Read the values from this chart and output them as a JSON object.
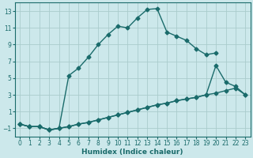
{
  "xlabel": "Humidex (Indice chaleur)",
  "background_color": "#cce8eb",
  "grid_color": "#aacccc",
  "line_color": "#1a6b6b",
  "xlim": [
    -0.5,
    23.5
  ],
  "ylim": [
    -2.0,
    14.0
  ],
  "yticks": [
    -1,
    1,
    3,
    5,
    7,
    9,
    11,
    13
  ],
  "xticks": [
    0,
    1,
    2,
    3,
    4,
    5,
    6,
    7,
    8,
    9,
    10,
    11,
    12,
    13,
    14,
    15,
    16,
    17,
    18,
    19,
    20,
    21,
    22,
    23
  ],
  "line1_x": [
    0,
    1,
    2,
    3,
    4,
    5,
    6,
    7,
    8,
    9,
    10,
    11,
    12,
    13,
    14,
    15,
    16,
    17,
    18,
    19,
    20,
    21,
    22,
    23
  ],
  "line1_y": [
    -0.5,
    -0.8,
    -0.8,
    -1.2,
    -1.0,
    5.3,
    6.2,
    7.5,
    9.0,
    10.2,
    11.2,
    11.0,
    12.2,
    13.2,
    13.3,
    10.5,
    10.0,
    9.5,
    8.5,
    7.8,
    8.0,
    null,
    null,
    null
  ],
  "line2_x": [
    0,
    1,
    2,
    3,
    4,
    5,
    6,
    7,
    8,
    9,
    10,
    11,
    12,
    13,
    14,
    15,
    16,
    17,
    18,
    19,
    20,
    21,
    22,
    23
  ],
  "line2_y": [
    -0.5,
    -0.8,
    -0.8,
    -1.2,
    -1.0,
    -0.8,
    -0.5,
    -0.3,
    0.0,
    0.3,
    0.6,
    0.9,
    1.2,
    1.5,
    1.8,
    2.0,
    2.3,
    2.5,
    2.7,
    3.0,
    3.2,
    3.5,
    3.8,
    3.0
  ],
  "line3_x": [
    0,
    1,
    2,
    3,
    4,
    5,
    6,
    7,
    8,
    9,
    10,
    11,
    12,
    13,
    14,
    15,
    16,
    17,
    18,
    19,
    20,
    21,
    22,
    23
  ],
  "line3_y": [
    -0.5,
    -0.8,
    -0.8,
    -1.2,
    -1.0,
    -0.8,
    -0.5,
    -0.3,
    0.0,
    0.3,
    0.6,
    0.9,
    1.2,
    1.5,
    1.8,
    2.0,
    2.3,
    2.5,
    2.7,
    3.0,
    6.5,
    4.5,
    4.0,
    3.0
  ],
  "marker": "D",
  "markersize": 2.5,
  "linewidth": 1.0
}
